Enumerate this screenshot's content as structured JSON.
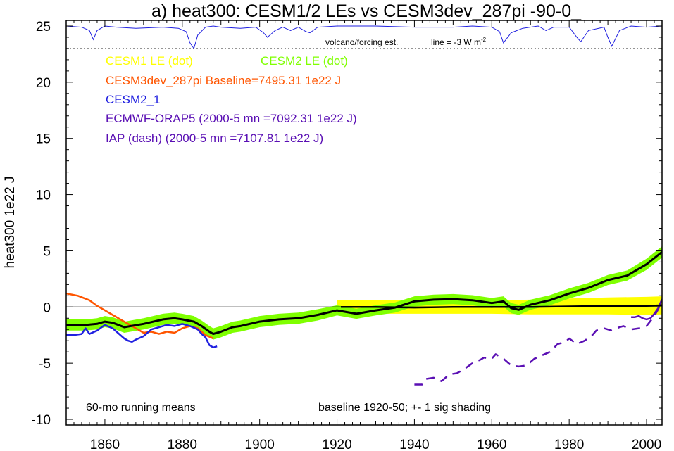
{
  "chart_data": {
    "type": "line",
    "title": "a) heat300: CESM1/2 LEs vs CESM3dev_287pi -90-0_",
    "ylabel": "heat300 1e22 J",
    "xlabel": "",
    "xlim": [
      1850,
      2004
    ],
    "ylim": [
      -10.5,
      25.5
    ],
    "xticks": [
      1860,
      1880,
      1900,
      1920,
      1940,
      1960,
      1980,
      2000
    ],
    "yticks": [
      -10,
      -5,
      0,
      5,
      10,
      15,
      20,
      25
    ],
    "grid": false,
    "legend": [
      {
        "text": "CESM1 LE (dot)",
        "color": "#ffff00"
      },
      {
        "text": "CESM2 LE (dot)",
        "color": "#7fff00"
      },
      {
        "text": "CESM3dev_287pi Baseline=7495.31 1e22 J",
        "color": "#ff5500"
      },
      {
        "text": "CESM2_1",
        "color": "#2020e0"
      },
      {
        "text": "ECMWF-ORAP5 (2000-5 mn =7092.31 1e22 J)",
        "color": "#5a0fb4"
      },
      {
        "text": "IAP (dash) (2000-5 mn =7107.81 1e22 J)",
        "color": "#5a0fb4"
      }
    ],
    "annotations": {
      "volcano": "volcano/forcing est.",
      "line_prefix": "line = -3 W m",
      "line_sup": "-2",
      "running": "60-mo running means",
      "baseline": "baseline 1920-50; +- 1 sig shading"
    },
    "volcano_line": {
      "value": 23,
      "x": [
        1850,
        1854,
        1856,
        1857,
        1858,
        1860,
        1863,
        1868,
        1875,
        1879,
        1881,
        1882,
        1883,
        1884,
        1886,
        1888,
        1890,
        1895,
        1899,
        1901,
        1902,
        1904,
        1906,
        1908,
        1910,
        1912,
        1913,
        1915,
        1920,
        1930,
        1940,
        1950,
        1955,
        1960,
        1962,
        1963,
        1965,
        1968,
        1972,
        1974,
        1976,
        1980,
        1982,
        1983,
        1985,
        1989,
        1990,
        1991,
        1993,
        1996,
        2000,
        2004
      ],
      "y": [
        25.0,
        24.9,
        24.6,
        23.8,
        24.6,
        25.0,
        24.9,
        24.8,
        24.9,
        24.8,
        24.5,
        23.5,
        23.0,
        24.2,
        24.9,
        25.0,
        24.9,
        24.8,
        24.9,
        24.4,
        24.0,
        24.6,
        24.9,
        24.6,
        24.9,
        24.5,
        24.4,
        24.9,
        25.0,
        25.0,
        24.9,
        24.9,
        25.0,
        24.9,
        24.5,
        23.5,
        24.4,
        24.8,
        25.0,
        24.6,
        24.9,
        24.9,
        24.0,
        23.6,
        24.6,
        24.9,
        24.0,
        23.2,
        24.6,
        25.0,
        24.9,
        25.0
      ]
    },
    "series": [
      {
        "name": "CESM1 LE (dot)",
        "color": "#ffff00",
        "x": [
          1920,
          1930,
          1940,
          1950,
          1960,
          1970,
          1980,
          1990,
          2000,
          2004
        ],
        "y": [
          0.0,
          0.0,
          0.0,
          0.0,
          0.0,
          0.0,
          0.05,
          0.1,
          0.1,
          0.15
        ],
        "sig": [
          0.6,
          0.6,
          0.6,
          0.6,
          0.6,
          0.65,
          0.7,
          0.75,
          0.8,
          0.8
        ]
      },
      {
        "name": "CESM2 LE (dot)",
        "color": "#7fff00",
        "x": [
          1850,
          1855,
          1858,
          1860,
          1862,
          1865,
          1870,
          1875,
          1878,
          1880,
          1883,
          1885,
          1887,
          1888,
          1890,
          1893,
          1895,
          1900,
          1905,
          1910,
          1915,
          1920,
          1925,
          1930,
          1935,
          1940,
          1945,
          1950,
          1955,
          1960,
          1963,
          1965,
          1967,
          1970,
          1975,
          1980,
          1985,
          1990,
          1995,
          2000,
          2004
        ],
        "y": [
          -1.6,
          -1.6,
          -1.5,
          -1.3,
          -1.4,
          -1.8,
          -1.5,
          -1.1,
          -1.0,
          -1.1,
          -1.3,
          -1.7,
          -2.2,
          -2.4,
          -2.2,
          -1.8,
          -1.7,
          -1.3,
          -1.1,
          -1.0,
          -0.7,
          -0.3,
          -0.6,
          -0.3,
          -0.05,
          0.5,
          0.65,
          0.7,
          0.6,
          0.35,
          0.5,
          -0.1,
          -0.25,
          0.2,
          0.6,
          1.2,
          1.7,
          2.4,
          2.8,
          3.8,
          4.9
        ],
        "sig": [
          0.5,
          0.5,
          0.5,
          0.5,
          0.5,
          0.5,
          0.5,
          0.5,
          0.5,
          0.5,
          0.5,
          0.5,
          0.5,
          0.5,
          0.5,
          0.5,
          0.5,
          0.5,
          0.5,
          0.5,
          0.5,
          0.45,
          0.45,
          0.45,
          0.45,
          0.45,
          0.45,
          0.45,
          0.45,
          0.45,
          0.45,
          0.45,
          0.45,
          0.45,
          0.45,
          0.45,
          0.45,
          0.45,
          0.45,
          0.5,
          0.5
        ]
      },
      {
        "name": "CESM3dev_287pi",
        "color": "#ff5500",
        "x": [
          1850,
          1853,
          1856,
          1858,
          1860,
          1862,
          1864,
          1866,
          1868,
          1870,
          1872,
          1874,
          1876,
          1878,
          1880,
          1882,
          1884,
          1886,
          1888
        ],
        "y": [
          1.2,
          1.0,
          0.6,
          0.1,
          -0.3,
          -0.7,
          -1.1,
          -1.5,
          -1.9,
          -2.3,
          -2.2,
          -2.4,
          -2.2,
          -2.3,
          -1.9,
          -1.7,
          -1.9,
          -2.5,
          -2.8
        ]
      },
      {
        "name": "CESM2_1",
        "color": "#2020e0",
        "x": [
          1850,
          1852,
          1854,
          1855,
          1856,
          1858,
          1860,
          1862,
          1864,
          1865,
          1866,
          1867,
          1868,
          1870,
          1872,
          1874,
          1876,
          1878,
          1880,
          1882,
          1884,
          1885,
          1886,
          1887,
          1888,
          1889
        ],
        "y": [
          -2.5,
          -2.5,
          -2.4,
          -1.9,
          -2.4,
          -2.1,
          -1.6,
          -1.9,
          -2.5,
          -2.8,
          -3.0,
          -3.1,
          -2.9,
          -2.6,
          -2.0,
          -1.8,
          -1.6,
          -1.7,
          -1.5,
          -1.7,
          -2.0,
          -2.4,
          -2.7,
          -3.4,
          -3.6,
          -3.5
        ]
      },
      {
        "name": "ECMWF-ORAP5",
        "color": "#5a0fb4",
        "x": [
          1996,
          1997,
          1998,
          1999,
          2000,
          2001,
          2002,
          2003,
          2004
        ],
        "y": [
          -0.9,
          -0.9,
          -0.8,
          -1.0,
          -1.1,
          -1.0,
          -0.6,
          -0.1,
          0.7
        ]
      },
      {
        "name": "IAP (dash)",
        "color": "#5a0fb4",
        "x": [
          1940,
          1942,
          1943,
          1945,
          1947,
          1949,
          1951,
          1953,
          1955,
          1957,
          1958,
          1960,
          1961,
          1963,
          1965,
          1967,
          1969,
          1971,
          1973,
          1975,
          1977,
          1979,
          1980,
          1982,
          1984,
          1986,
          1987,
          1989,
          1991,
          1993,
          1994,
          1996,
          1998,
          2000,
          2002,
          2003,
          2004
        ],
        "y": [
          -6.9,
          -6.9,
          -6.4,
          -6.3,
          -6.6,
          -6.0,
          -5.9,
          -5.5,
          -5.0,
          -4.7,
          -4.5,
          -4.6,
          -4.2,
          -4.6,
          -5.2,
          -5.3,
          -5.2,
          -4.6,
          -4.3,
          -4.0,
          -3.3,
          -3.1,
          -2.8,
          -3.3,
          -3.0,
          -2.5,
          -2.1,
          -1.9,
          -2.1,
          -1.8,
          -1.7,
          -2.0,
          -1.9,
          -1.7,
          -0.8,
          -0.2,
          0.6
        ]
      },
      {
        "name": "ensemble mean",
        "color": "#000000",
        "x": [
          1850,
          1855,
          1858,
          1860,
          1862,
          1865,
          1870,
          1875,
          1878,
          1880,
          1883,
          1885,
          1887,
          1888,
          1890,
          1893,
          1895,
          1900,
          1905,
          1910,
          1915,
          1920,
          1925,
          1930,
          1935,
          1940,
          1945,
          1950,
          1955,
          1960,
          1963,
          1965,
          1967,
          1970,
          1975,
          1980,
          1985,
          1990,
          1995,
          2000,
          2004
        ],
        "y": [
          -1.6,
          -1.6,
          -1.5,
          -1.3,
          -1.4,
          -1.8,
          -1.5,
          -1.1,
          -1.0,
          -1.1,
          -1.3,
          -1.7,
          -2.2,
          -2.4,
          -2.2,
          -1.8,
          -1.7,
          -1.3,
          -1.1,
          -1.0,
          -0.7,
          -0.3,
          -0.6,
          -0.3,
          -0.05,
          0.5,
          0.65,
          0.7,
          0.6,
          0.35,
          0.5,
          -0.1,
          -0.25,
          0.2,
          0.6,
          1.2,
          1.7,
          2.4,
          2.8,
          3.8,
          4.9
        ]
      },
      {
        "name": "CESM1 LE mean",
        "color": "#000000",
        "x": [
          1921,
          1930,
          1940,
          1950,
          1960,
          1970,
          1980,
          1990,
          2000,
          2004
        ],
        "y": [
          0.0,
          0.0,
          -0.05,
          0.0,
          0.0,
          0.0,
          0.05,
          0.1,
          0.1,
          0.15
        ]
      }
    ]
  }
}
